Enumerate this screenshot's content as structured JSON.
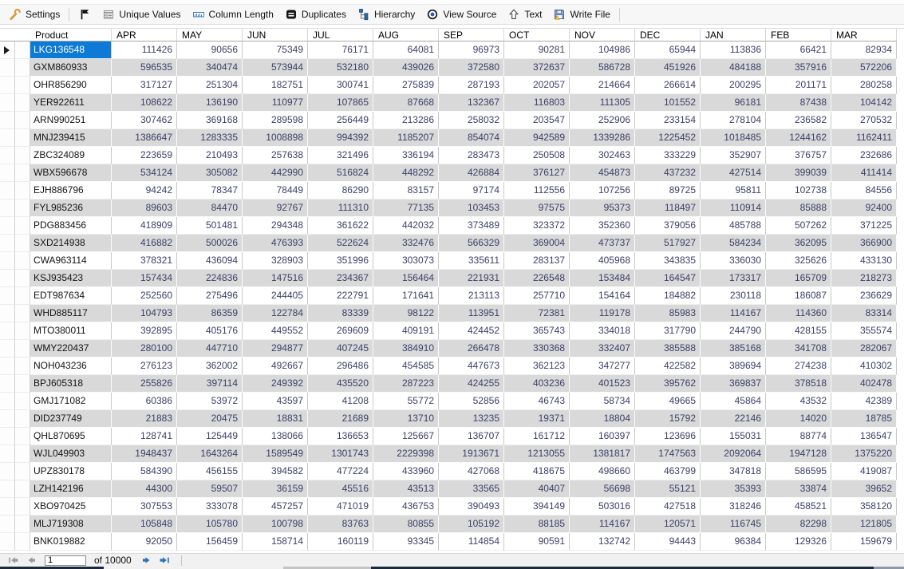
{
  "colors": {
    "selection": "#0d7ad5",
    "alt_row": "#d9d9d9",
    "number_text": "#3c4068",
    "pager_active_arrow": "#2e75b6",
    "pager_disabled_arrow": "#9b9b9b"
  },
  "toolbar": {
    "items": [
      {
        "label": "Settings",
        "icon": "wrench-icon",
        "sep_after": true
      },
      {
        "label": "",
        "icon": "flag-icon"
      },
      {
        "label": "Unique Values",
        "icon": "unique-values-icon"
      },
      {
        "label": "Column Length",
        "icon": "column-length-icon"
      },
      {
        "label": "Duplicates",
        "icon": "duplicates-icon"
      },
      {
        "label": "Hierarchy",
        "icon": "hierarchy-icon"
      },
      {
        "label": "View Source",
        "icon": "view-source-icon"
      },
      {
        "label": "Text",
        "icon": "text-icon"
      },
      {
        "label": "Write File",
        "icon": "write-file-icon",
        "sep_after": true
      }
    ]
  },
  "table": {
    "columns": [
      "Product",
      "APR",
      "MAY",
      "JUN",
      "JUL",
      "AUG",
      "SEP",
      "OCT",
      "NOV",
      "DEC",
      "JAN",
      "FEB",
      "MAR"
    ],
    "selected_product": "LKG136548",
    "rows": [
      {
        "product": "LKG136548",
        "values": [
          111426,
          90656,
          75349,
          76171,
          64081,
          96973,
          90281,
          104986,
          65944,
          113836,
          66421,
          82934
        ]
      },
      {
        "product": "GXM860933",
        "values": [
          596535,
          340474,
          573944,
          532180,
          439026,
          372580,
          372637,
          586728,
          451926,
          484188,
          357916,
          572206
        ]
      },
      {
        "product": "OHR856290",
        "values": [
          317127,
          251304,
          182751,
          300741,
          275839,
          287193,
          202057,
          214664,
          266614,
          200295,
          201171,
          280258
        ]
      },
      {
        "product": "YER922611",
        "values": [
          108622,
          136190,
          110977,
          107865,
          87668,
          132367,
          116803,
          111305,
          101552,
          96181,
          87438,
          104142
        ]
      },
      {
        "product": "ARN990251",
        "values": [
          307462,
          369168,
          289598,
          256449,
          213286,
          258032,
          203547,
          252906,
          233154,
          278104,
          236582,
          270532
        ]
      },
      {
        "product": "MNJ239415",
        "values": [
          1386647,
          1283335,
          1008898,
          994392,
          1185207,
          854074,
          942589,
          1339286,
          1225452,
          1018485,
          1244162,
          1162411
        ]
      },
      {
        "product": "ZBC324089",
        "values": [
          223659,
          210493,
          257638,
          321496,
          336194,
          283473,
          250508,
          302463,
          333229,
          352907,
          376757,
          232686
        ]
      },
      {
        "product": "WBX596678",
        "values": [
          534124,
          305082,
          442990,
          516824,
          448292,
          426884,
          376127,
          454873,
          437232,
          427514,
          399039,
          411414
        ]
      },
      {
        "product": "EJH886796",
        "values": [
          94242,
          78347,
          78449,
          86290,
          83157,
          97174,
          112556,
          107256,
          89725,
          95811,
          102738,
          84556
        ]
      },
      {
        "product": "FYL985236",
        "values": [
          89603,
          84470,
          92767,
          111310,
          77135,
          103453,
          97575,
          95373,
          118497,
          110914,
          85888,
          92400
        ]
      },
      {
        "product": "PDG883456",
        "values": [
          418909,
          501481,
          294348,
          361622,
          442032,
          373489,
          323372,
          352360,
          379056,
          485788,
          507262,
          371225
        ]
      },
      {
        "product": "SXD214938",
        "values": [
          416882,
          500026,
          476393,
          522624,
          332476,
          566329,
          369004,
          473737,
          517927,
          584234,
          362095,
          366900
        ]
      },
      {
        "product": "CWA963114",
        "values": [
          378321,
          436094,
          328903,
          351996,
          303073,
          335611,
          283137,
          405968,
          343835,
          336030,
          325626,
          433130
        ]
      },
      {
        "product": "KSJ935423",
        "values": [
          157434,
          224836,
          147516,
          234367,
          156464,
          221931,
          226548,
          153484,
          164547,
          173317,
          165709,
          218273
        ]
      },
      {
        "product": "EDT987634",
        "values": [
          252560,
          275496,
          244405,
          222791,
          171641,
          213113,
          257710,
          154164,
          184882,
          230118,
          186087,
          236629
        ]
      },
      {
        "product": "WHD885117",
        "values": [
          104793,
          86359,
          122784,
          83339,
          98122,
          113951,
          72381,
          119178,
          85983,
          114167,
          114360,
          83314
        ]
      },
      {
        "product": "MTO380011",
        "values": [
          392895,
          405176,
          449552,
          269609,
          409191,
          424452,
          365743,
          334018,
          317790,
          244790,
          428155,
          355574
        ]
      },
      {
        "product": "WMY220437",
        "values": [
          280100,
          447710,
          294877,
          407245,
          384910,
          266478,
          330368,
          332407,
          385588,
          385168,
          341708,
          282067
        ]
      },
      {
        "product": "NOH043236",
        "values": [
          276123,
          362002,
          492667,
          296486,
          454585,
          447673,
          362123,
          347277,
          422582,
          389694,
          274238,
          410302
        ]
      },
      {
        "product": "BPJ605318",
        "values": [
          255826,
          397114,
          249392,
          435520,
          287223,
          424255,
          403236,
          401523,
          395762,
          369837,
          378518,
          402478
        ]
      },
      {
        "product": "GMJ171082",
        "values": [
          60386,
          53972,
          43597,
          41208,
          55772,
          52856,
          46743,
          58734,
          49665,
          45864,
          43532,
          42389
        ]
      },
      {
        "product": "DID237749",
        "values": [
          21883,
          20475,
          18831,
          21689,
          13710,
          13235,
          19371,
          18804,
          15792,
          22146,
          14020,
          18785
        ]
      },
      {
        "product": "QHL870695",
        "values": [
          128741,
          125449,
          138066,
          136653,
          125667,
          136707,
          161712,
          160397,
          123696,
          155031,
          88774,
          136547
        ]
      },
      {
        "product": "WJL049903",
        "values": [
          1948437,
          1643264,
          1589549,
          1301743,
          2229398,
          1913671,
          1213055,
          1381817,
          1747563,
          2092064,
          1947128,
          1375220
        ]
      },
      {
        "product": "UPZ830178",
        "values": [
          584390,
          456155,
          394582,
          477224,
          433960,
          427068,
          418675,
          498660,
          463799,
          347818,
          586595,
          419087
        ]
      },
      {
        "product": "LZH142196",
        "values": [
          44300,
          59507,
          36159,
          45516,
          43513,
          33565,
          40407,
          56698,
          55121,
          35393,
          33874,
          39652
        ]
      },
      {
        "product": "XBO970425",
        "values": [
          307553,
          333078,
          457257,
          471019,
          436753,
          390493,
          394149,
          503016,
          427518,
          318246,
          458521,
          358120
        ]
      },
      {
        "product": "MLJ719308",
        "values": [
          105848,
          105780,
          100798,
          83763,
          80855,
          105192,
          88185,
          114167,
          120571,
          116745,
          82298,
          121805
        ]
      },
      {
        "product": "BNK019882",
        "values": [
          92050,
          156459,
          158714,
          160119,
          93345,
          114854,
          90591,
          132742,
          94443,
          96384,
          129326,
          159679
        ]
      }
    ]
  },
  "pagination": {
    "page": "1",
    "of_label": "of 10000"
  }
}
